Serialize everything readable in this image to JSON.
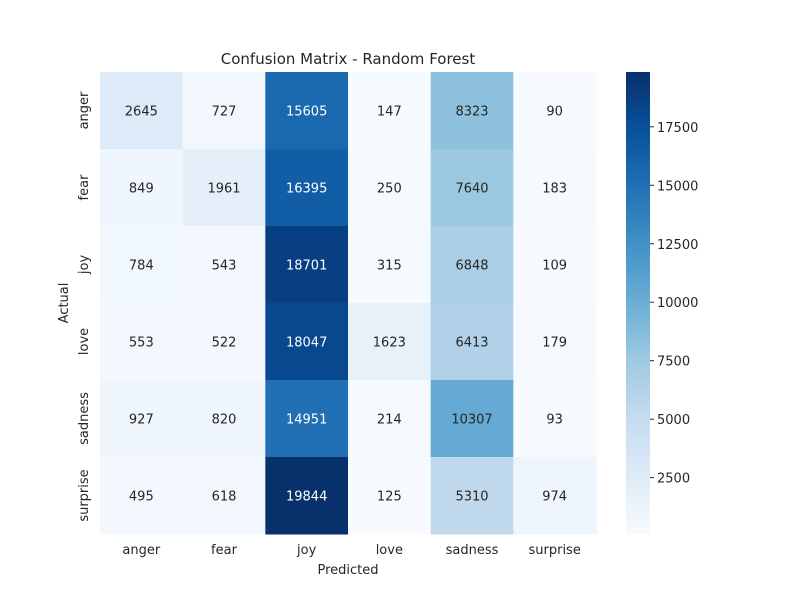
{
  "chart_data": {
    "type": "heatmap",
    "title": "Confusion Matrix - Random Forest",
    "xlabel": "Predicted",
    "ylabel": "Actual",
    "x_categories": [
      "anger",
      "fear",
      "joy",
      "love",
      "sadness",
      "surprise"
    ],
    "y_categories": [
      "anger",
      "fear",
      "joy",
      "love",
      "sadness",
      "surprise"
    ],
    "values": [
      [
        2645,
        727,
        15605,
        147,
        8323,
        90
      ],
      [
        849,
        1961,
        16395,
        250,
        7640,
        183
      ],
      [
        784,
        543,
        18701,
        315,
        6848,
        109
      ],
      [
        553,
        522,
        18047,
        1623,
        6413,
        179
      ],
      [
        927,
        820,
        14951,
        214,
        10307,
        93
      ],
      [
        495,
        618,
        19844,
        125,
        5310,
        974
      ]
    ],
    "colorbar": {
      "min": 90,
      "max": 19844,
      "ticks": [
        2500,
        5000,
        7500,
        10000,
        12500,
        15000,
        17500
      ],
      "colormap": "Blues"
    },
    "grid": false
  }
}
